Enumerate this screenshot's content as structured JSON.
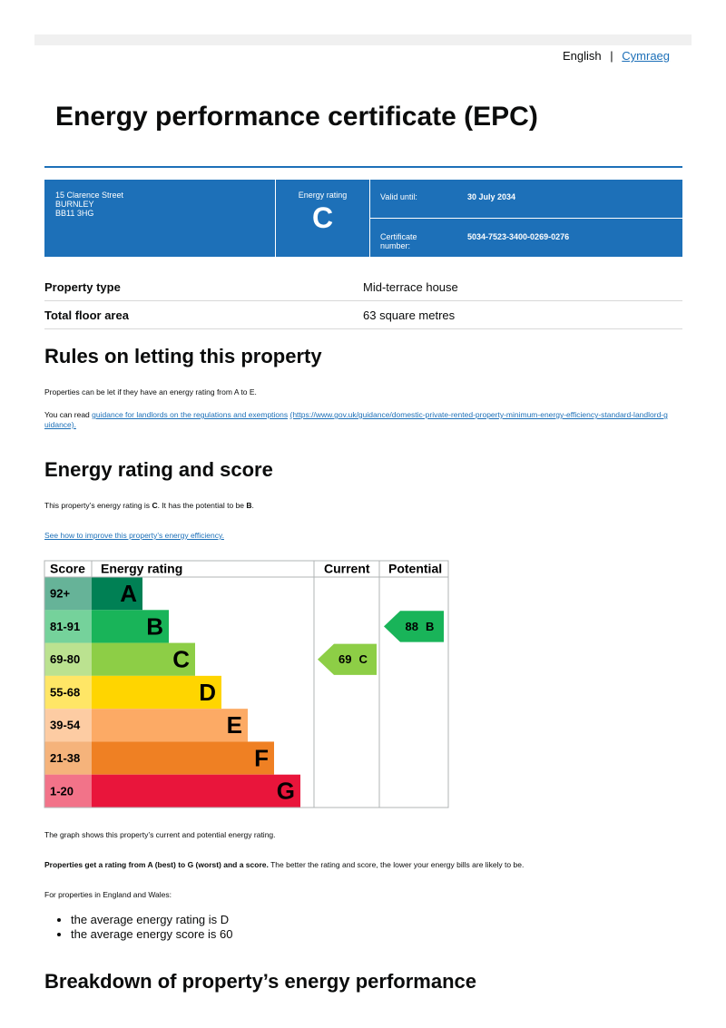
{
  "language": {
    "current": "English",
    "separator": "|",
    "alternate": "Cymraeg"
  },
  "header": {
    "title": "Energy performance certificate (EPC)"
  },
  "summary": {
    "address": [
      "15 Clarence Street",
      "BURNLEY",
      "BB11 3HG"
    ],
    "rating_label": "Energy rating",
    "rating": "C",
    "valid_label": "Valid until:",
    "valid_until": "30 July 2034",
    "certificate_label": "Certificate number:",
    "certificate_number": "5034-7523-3400-0269-0276"
  },
  "property": {
    "rows": [
      [
        "Property type",
        "Mid-terrace house"
      ],
      [
        "Total floor area",
        "63 square metres"
      ]
    ]
  },
  "letting": {
    "heading": "Rules on letting this property",
    "paragraph": "Properties can be let if they have an energy rating from A to E.",
    "read_prefix": "You can read",
    "link": "guidance for landlords on the regulations and exemptions",
    "url": "(https://www.gov.uk/guidance/domestic-private-rented-property-minimum-energy-efficiency-standard-landlord-guidance)."
  },
  "rating": {
    "heading": "Energy rating and score",
    "statement": [
      "This property’s energy rating is ",
      "C",
      ". It has the potential to be ",
      "B",
      "."
    ],
    "improve_link": "See how to improve this property’s energy efficiency."
  },
  "chart": {
    "headers": [
      "Score",
      "Energy rating",
      "Current",
      "Potential"
    ],
    "bands": [
      {
        "range": "92+",
        "letter": "A",
        "color": "#008054"
      },
      {
        "range": "81-91",
        "letter": "B",
        "color": "#19b459"
      },
      {
        "range": "69-80",
        "letter": "C",
        "color": "#8dce46"
      },
      {
        "range": "55-68",
        "letter": "D",
        "color": "#ffd500"
      },
      {
        "range": "39-54",
        "letter": "E",
        "color": "#fcaa65"
      },
      {
        "range": "21-38",
        "letter": "F",
        "color": "#ef8023"
      },
      {
        "range": "1-20",
        "letter": "G",
        "color": "#e9153b"
      }
    ],
    "current": {
      "score": 69,
      "letter": "C"
    },
    "potential": {
      "score": 88,
      "letter": "B"
    }
  },
  "notes": {
    "graph": "The graph shows this property’s current and potential energy rating.",
    "scale_bold": "Properties get a rating from A (best) to G (worst) and a score.",
    "scale_rest": "The better the rating and score, the lower your energy bills are likely to be.",
    "regional": "For properties in England and Wales:",
    "bullets": [
      "the average energy rating is D",
      "the average energy score is 60"
    ]
  },
  "breakdown": {
    "heading": "Breakdown of property’s energy performance"
  }
}
